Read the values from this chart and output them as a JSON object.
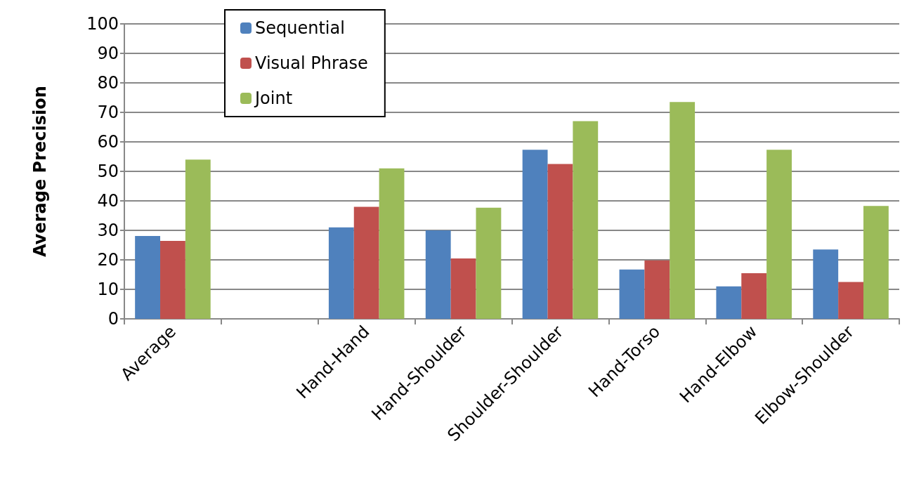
{
  "chart_data": {
    "type": "bar",
    "ylabel": "Average Precision",
    "categories": [
      "Average",
      null,
      "Hand-Hand",
      "Hand-Shoulder",
      "Shoulder-Shoulder",
      "Hand-Torso",
      "Hand-Elbow",
      "Elbow-Shoulder"
    ],
    "series": [
      {
        "name": "Sequential",
        "color": "#4f81bd",
        "values": [
          28.1,
          null,
          31,
          30,
          57.3,
          16.7,
          11,
          23.5
        ]
      },
      {
        "name": "Visual Phrase",
        "color": "#c0504d",
        "values": [
          26.4,
          null,
          38,
          20.5,
          52.5,
          19.8,
          15.5,
          12.5
        ]
      },
      {
        "name": "Joint",
        "color": "#9bbb59",
        "values": [
          54,
          null,
          51,
          37.7,
          67,
          73.5,
          57.3,
          38.3
        ]
      }
    ],
    "ylim": [
      0,
      100
    ],
    "yticks": [
      0,
      10,
      20,
      30,
      40,
      50,
      60,
      70,
      80,
      90,
      100
    ],
    "grid": "y",
    "legend": "top left"
  }
}
